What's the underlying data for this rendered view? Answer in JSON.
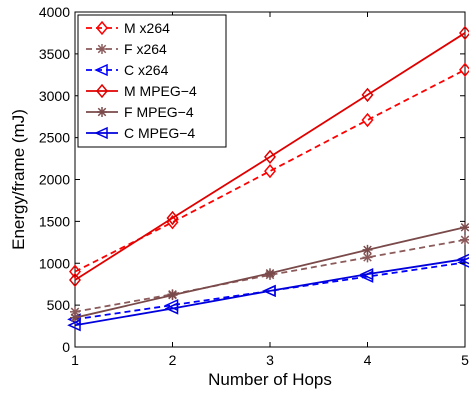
{
  "chart_data": {
    "type": "line",
    "title": "",
    "xlabel": "Number of Hops",
    "ylabel": "Energy/frame (mJ)",
    "xlim": [
      1,
      5
    ],
    "ylim": [
      0,
      4000
    ],
    "xticks": [
      1,
      2,
      3,
      4,
      5
    ],
    "yticks": [
      0,
      500,
      1000,
      1500,
      2000,
      2500,
      3000,
      3500,
      4000
    ],
    "grid": false,
    "legend_position": "top-left",
    "x": [
      1,
      2,
      3,
      4,
      5
    ],
    "series": [
      {
        "name": "M x264",
        "values": [
          900,
          1490,
          2100,
          2710,
          3310
        ],
        "color": "#ff0000",
        "line_style": "dashed",
        "marker": "diamond"
      },
      {
        "name": "F x264",
        "values": [
          420,
          630,
          860,
          1070,
          1280
        ],
        "color": "#8b5a5a",
        "line_style": "dashed",
        "marker": "asterisk"
      },
      {
        "name": "C x264",
        "values": [
          330,
          500,
          670,
          840,
          1010
        ],
        "color": "#0000ff",
        "line_style": "dashed",
        "marker": "triangle-left"
      },
      {
        "name": "M MPEG−4",
        "values": [
          800,
          1540,
          2270,
          3010,
          3750
        ],
        "color": "#e00000",
        "line_style": "solid",
        "marker": "diamond"
      },
      {
        "name": "F MPEG−4",
        "values": [
          350,
          620,
          880,
          1160,
          1430
        ],
        "color": "#7a4a4a",
        "line_style": "solid",
        "marker": "asterisk"
      },
      {
        "name": "C MPEG−4",
        "values": [
          260,
          460,
          670,
          870,
          1050
        ],
        "color": "#0000dd",
        "line_style": "solid",
        "marker": "triangle-left"
      }
    ]
  }
}
